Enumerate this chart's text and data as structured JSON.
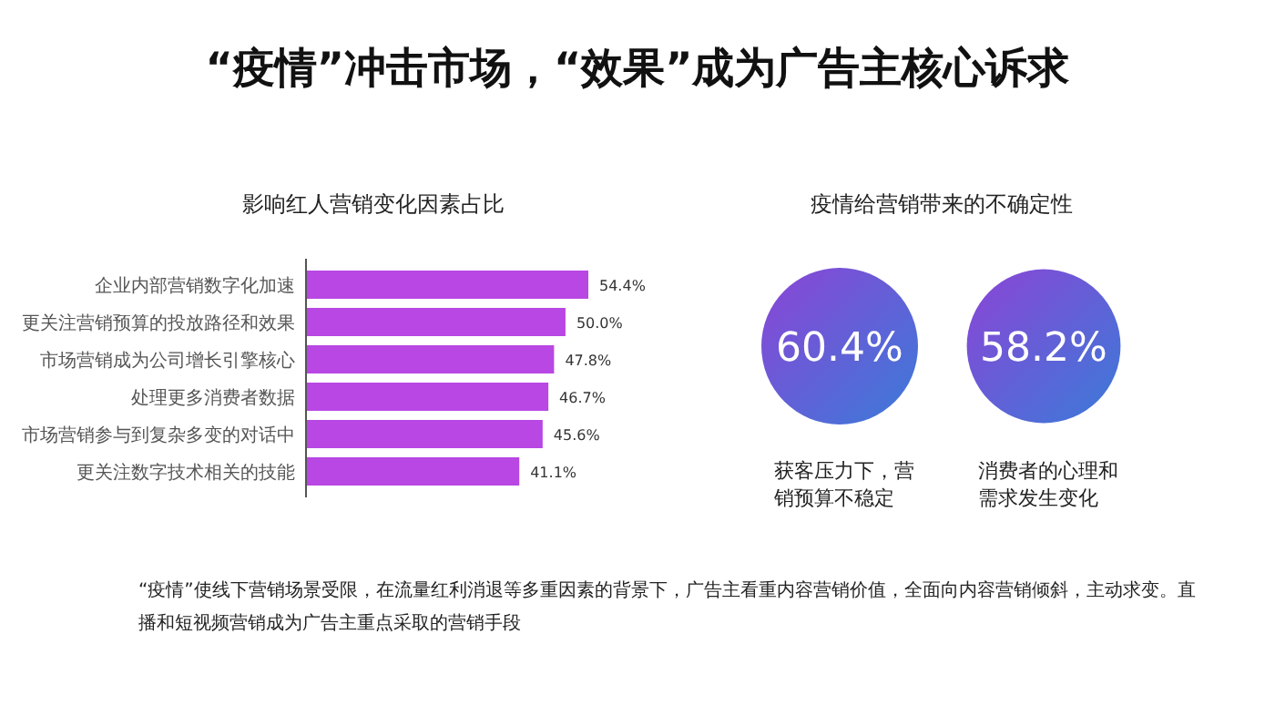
{
  "chart_data": [
    {
      "type": "bar",
      "orientation": "horizontal",
      "title": "“疫情”冲击市场，“效果”成为广告主核心诉求",
      "subtitle": "影响红人营销变化因素占比",
      "categories": [
        "企业内部营销数字化加速",
        "更关注营销预算的投放路径和效果",
        "市场营销成为公司增长引擎核心",
        "处理更多消费者数据",
        "市场营销参与到复杂多变的对话中",
        "更关注数字技术相关的技能"
      ],
      "values": [
        54.4,
        50.0,
        47.8,
        46.7,
        45.6,
        41.1
      ],
      "value_labels": [
        "54.4%",
        "50.0%",
        "47.8%",
        "46.7%",
        "45.6%",
        "41.1%"
      ],
      "color": "#b847e3",
      "annotations": [
        "“疫情”使线下营销场景受限，在流量红利消退等多重因素的背景下，广告主看重内容营销价值，全面向内容营销倾斜，主动求变。直播和短视频营销成为广告主重点采取的营销手段"
      ]
    },
    {
      "type": "other",
      "title": "疫情给营销带来的不确定性",
      "categories": [
        "获客压力下，营销预算不稳定",
        "消费者的心理和需求发生变化"
      ],
      "values": [
        60.4,
        58.2
      ],
      "value_labels": [
        "60.4%",
        "58.2%"
      ],
      "colors": [
        "#8c44d6",
        "#3a7bd8"
      ]
    }
  ]
}
